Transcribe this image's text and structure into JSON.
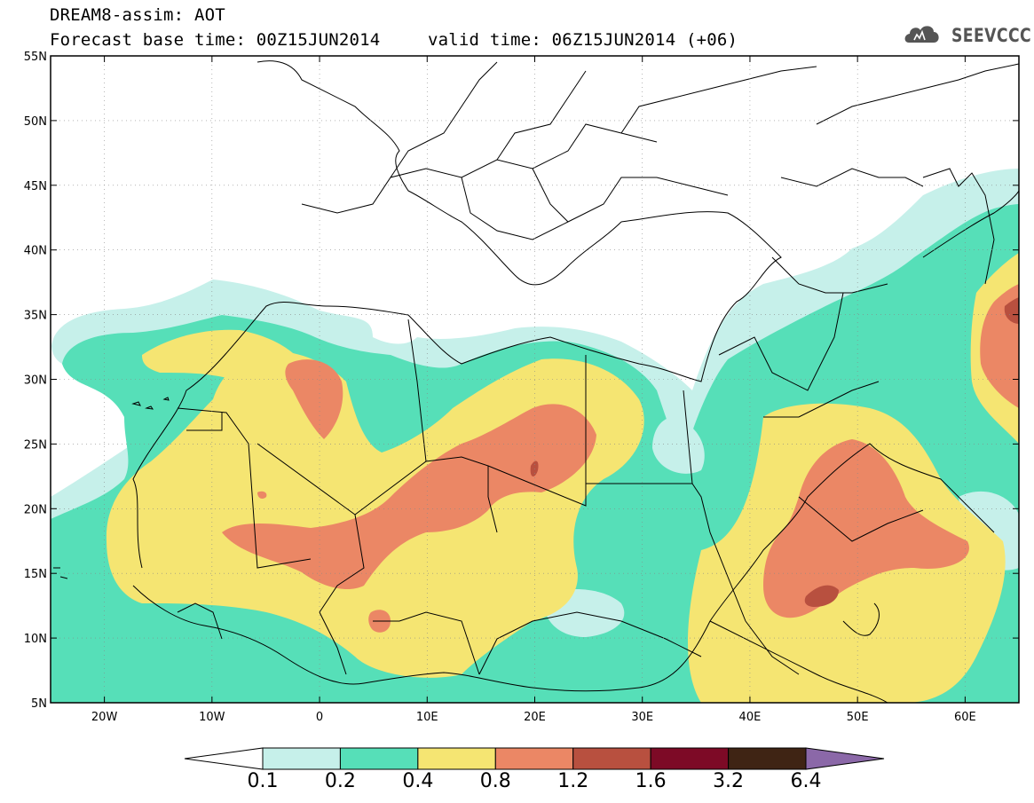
{
  "header": {
    "title": "DREAM8-assim: AOT",
    "base_time": "Forecast base time: 00Z15JUN2014",
    "valid_time": "valid time: 06Z15JUN2014 (+06)",
    "logo_text": "SEEVCCC"
  },
  "map": {
    "projection": "lat-lon",
    "lon_range": [
      -25,
      65
    ],
    "lat_range": [
      5,
      55
    ],
    "lat_labels": [
      "5N",
      "10N",
      "15N",
      "20N",
      "25N",
      "30N",
      "35N",
      "40N",
      "45N",
      "50N",
      "55N"
    ],
    "lon_labels": [
      "20W",
      "10W",
      "0",
      "10E",
      "20E",
      "30E",
      "40E",
      "50E",
      "60E"
    ],
    "variable": "AOT"
  },
  "colorbar": {
    "levels": [
      "0.1",
      "0.2",
      "0.4",
      "0.8",
      "1.2",
      "1.6",
      "3.2",
      "6.4"
    ],
    "colors": [
      "#ffffff",
      "#c6f0ea",
      "#56dfb8",
      "#f5e572",
      "#eb8765",
      "#b8503f",
      "#7d0a26",
      "#3f2414",
      "#8b68a8"
    ]
  }
}
